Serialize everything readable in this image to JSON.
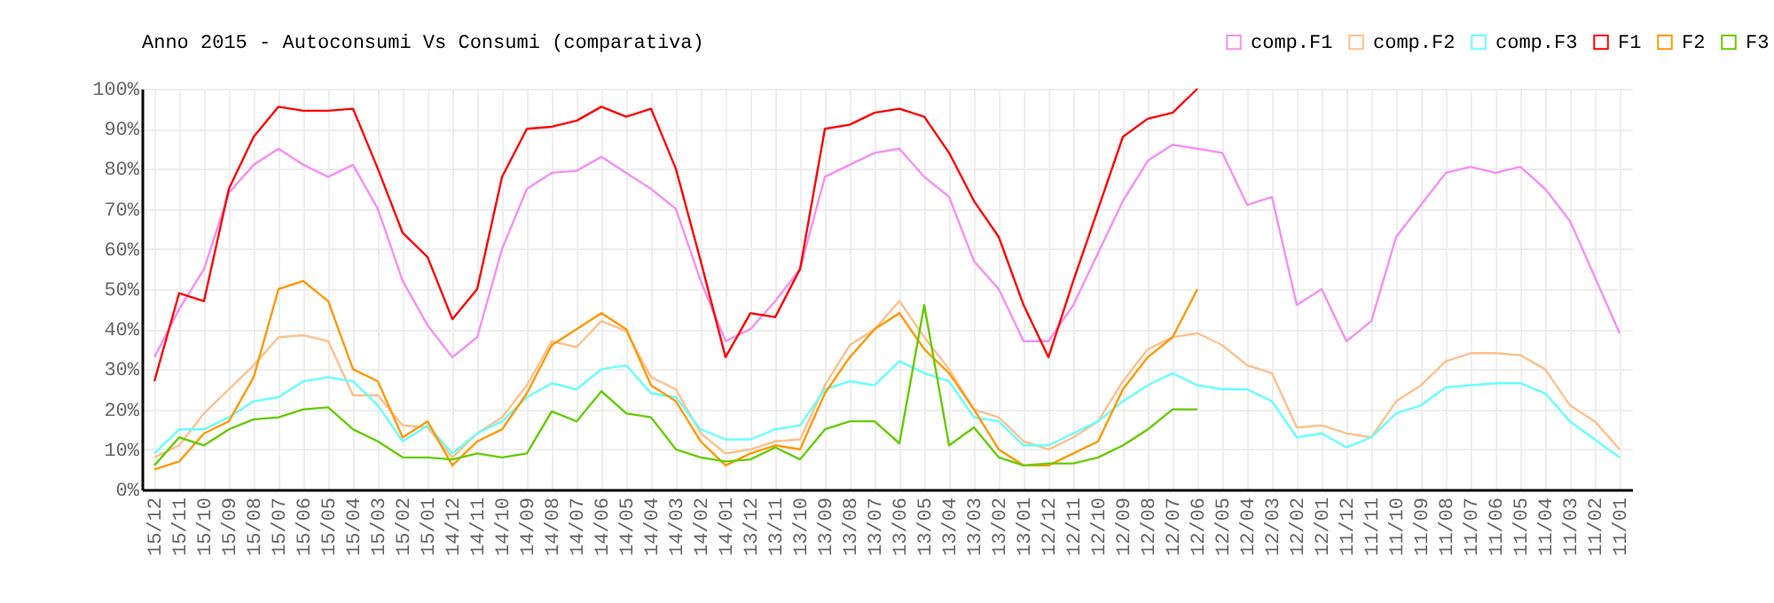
{
  "chart_data": {
    "type": "line",
    "title": "Anno 2015 - Autoconsumi Vs Consumi (comparativa)",
    "categories": [
      "15/12",
      "15/11",
      "15/10",
      "15/09",
      "15/08",
      "15/07",
      "15/06",
      "15/05",
      "15/04",
      "15/03",
      "15/02",
      "15/01",
      "14/12",
      "14/11",
      "14/10",
      "14/09",
      "14/08",
      "14/07",
      "14/06",
      "14/05",
      "14/04",
      "14/03",
      "14/02",
      "14/01",
      "13/12",
      "13/11",
      "13/10",
      "13/09",
      "13/08",
      "13/07",
      "13/06",
      "13/05",
      "13/04",
      "13/03",
      "13/02",
      "13/01",
      "12/12",
      "12/11",
      "12/10",
      "12/09",
      "12/08",
      "12/07",
      "12/06",
      "12/05",
      "12/04",
      "12/03",
      "12/02",
      "12/01",
      "11/12",
      "11/11",
      "11/10",
      "11/09",
      "11/08",
      "11/07",
      "11/06",
      "11/05",
      "11/04",
      "11/03",
      "11/02",
      "11/01"
    ],
    "series": [
      {
        "name": "comp.F1",
        "color": "#f68ff6",
        "values": [
          33,
          45,
          55,
          74,
          81,
          85,
          81,
          78,
          81,
          70,
          52,
          41,
          33,
          38,
          60,
          75,
          79,
          79.5,
          83,
          79,
          75,
          70,
          52,
          37,
          40,
          47,
          55,
          78,
          81,
          84,
          85,
          78,
          73,
          57,
          50,
          37,
          37,
          46,
          59,
          72,
          82,
          86,
          85,
          84,
          71,
          73,
          46,
          50,
          37,
          42,
          63,
          71,
          79,
          80.5,
          79,
          80.5,
          75,
          67,
          53,
          39
        ]
      },
      {
        "name": "comp.F2",
        "color": "#ffc08c",
        "values": [
          8,
          11,
          19,
          25,
          31,
          38,
          38.5,
          37,
          23.5,
          23.5,
          16,
          15.5,
          8,
          14,
          18,
          26,
          37,
          35.5,
          42,
          39.5,
          28,
          25,
          14,
          9,
          10,
          12,
          12.5,
          26,
          36,
          40,
          47,
          38,
          30,
          20,
          18,
          12,
          10,
          13,
          17,
          27,
          35,
          38,
          39,
          36,
          31,
          29,
          15.5,
          16,
          14,
          13,
          22,
          26,
          32,
          34,
          34,
          33.5,
          30,
          21,
          17,
          10
        ]
      },
      {
        "name": "comp.F3",
        "color": "#66ffff",
        "values": [
          9,
          15,
          15,
          18,
          22,
          23,
          27,
          28,
          27,
          21,
          12,
          16,
          9,
          14,
          17,
          23,
          26.5,
          25,
          30,
          31,
          24,
          23,
          15,
          12.5,
          12.5,
          15,
          16,
          25,
          27,
          26,
          32,
          29,
          27,
          18,
          17,
          11,
          11,
          14,
          17,
          22,
          26,
          29,
          26,
          25,
          25,
          22,
          13,
          14,
          10.5,
          13,
          19,
          21,
          25.5,
          26,
          26.5,
          26.5,
          24,
          17,
          12.5,
          8
        ]
      },
      {
        "name": "F1",
        "color": "#ff0000",
        "values": [
          27,
          49,
          47,
          75,
          88,
          95.5,
          94.5,
          94.5,
          95,
          80,
          64,
          58,
          42.5,
          50,
          78,
          90,
          90.5,
          92,
          95.5,
          93,
          95,
          80,
          57,
          33,
          44,
          43,
          55,
          90,
          91,
          94,
          95,
          93,
          84,
          72,
          63,
          46,
          33,
          52,
          70,
          88,
          92.5,
          94,
          100,
          null,
          null,
          null,
          null,
          null,
          null,
          null,
          null,
          null,
          null,
          null,
          null,
          null,
          null,
          null,
          null,
          null
        ]
      },
      {
        "name": "F2",
        "color": "#ff9900",
        "values": [
          5,
          7,
          14,
          17,
          28,
          50,
          52,
          47,
          30,
          27,
          13,
          17,
          6,
          12,
          15,
          24,
          36,
          40,
          44,
          40,
          26,
          22,
          12,
          6,
          9,
          11,
          10,
          24,
          33,
          40,
          44,
          35,
          29,
          20,
          10,
          6,
          6,
          9,
          12,
          25,
          33,
          38,
          50,
          null,
          null,
          null,
          null,
          null,
          null,
          null,
          null,
          null,
          null,
          null,
          null,
          null,
          null,
          null,
          null,
          null
        ]
      },
      {
        "name": "F3",
        "color": "#66cc00",
        "values": [
          6,
          13,
          11,
          15,
          17.5,
          18,
          20,
          20.5,
          15,
          12,
          8,
          8,
          7.5,
          9,
          8,
          9,
          19.5,
          17,
          24.5,
          19,
          18,
          10,
          8,
          7,
          7.5,
          10.5,
          7.5,
          15,
          17,
          17,
          11.5,
          46,
          11,
          15.5,
          8,
          6,
          6.5,
          6.5,
          8,
          11,
          15,
          20,
          20,
          null,
          null,
          null,
          null,
          null,
          null,
          null,
          null,
          null,
          null,
          null,
          null,
          null,
          null,
          null,
          null,
          null
        ]
      }
    ],
    "ylim": [
      0,
      100
    ],
    "yticks": [
      {
        "value": 0,
        "label": "0%"
      },
      {
        "value": 10,
        "label": "10%"
      },
      {
        "value": 20,
        "label": "20%"
      },
      {
        "value": 30,
        "label": "30%"
      },
      {
        "value": 40,
        "label": "40%"
      },
      {
        "value": 50,
        "label": "50%"
      },
      {
        "value": 60,
        "label": "60%"
      },
      {
        "value": 70,
        "label": "70%"
      },
      {
        "value": 80,
        "label": "80%"
      },
      {
        "value": 90,
        "label": "90%"
      },
      {
        "value": 100,
        "label": "100%"
      }
    ],
    "grid": true,
    "legend": "top right",
    "marker": "none",
    "line_style": "solid"
  }
}
